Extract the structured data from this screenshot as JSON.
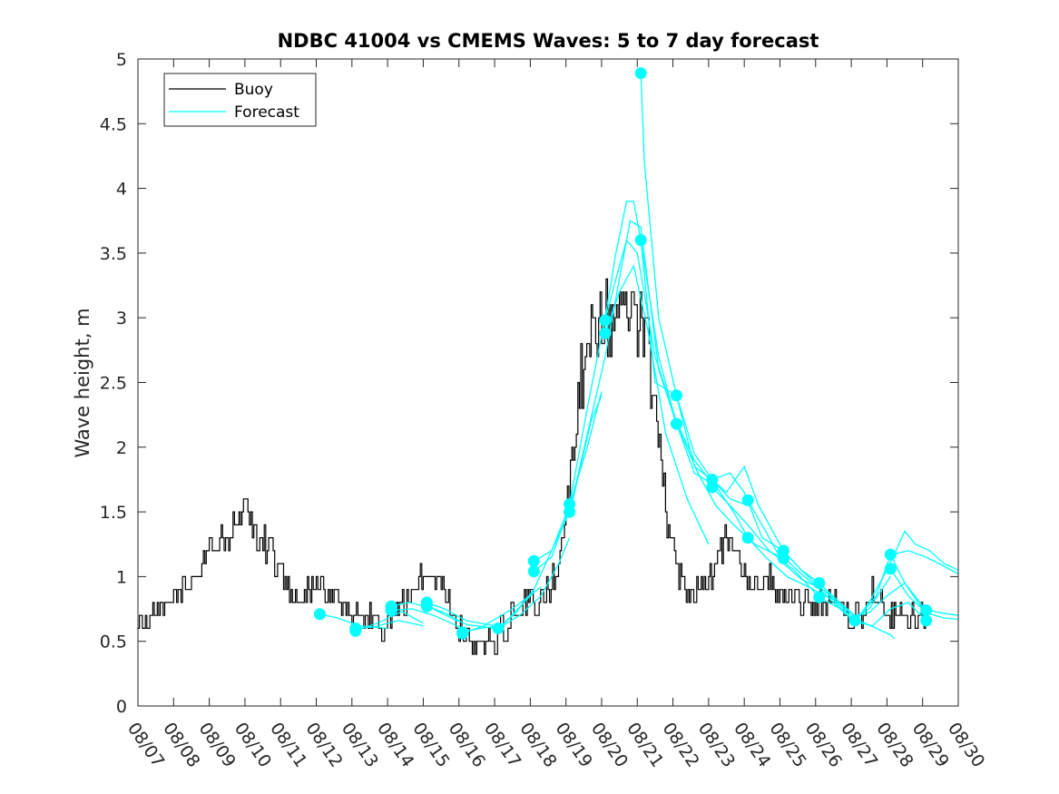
{
  "chart_data": {
    "type": "line",
    "title": "NDBC 41004 vs CMEMS Waves: 5 to 7 day forecast",
    "xlabel": "",
    "ylabel": "Wave height, m",
    "xlim_day": [
      7,
      30
    ],
    "ylim": [
      0,
      5
    ],
    "yticks": [
      0,
      0.5,
      1,
      1.5,
      2,
      2.5,
      3,
      3.5,
      4,
      4.5,
      5
    ],
    "ytick_labels": [
      "0",
      "0.5",
      "1",
      "1.5",
      "2",
      "2.5",
      "3",
      "3.5",
      "4",
      "4.5",
      "5"
    ],
    "xticks_day": [
      7,
      8,
      9,
      10,
      11,
      12,
      13,
      14,
      15,
      16,
      17,
      18,
      19,
      20,
      21,
      22,
      23,
      24,
      25,
      26,
      27,
      28,
      29,
      30
    ],
    "xtick_labels": [
      "08/07",
      "08/08",
      "08/09",
      "08/10",
      "08/11",
      "08/12",
      "08/13",
      "08/14",
      "08/15",
      "08/16",
      "08/17",
      "08/18",
      "08/19",
      "08/20",
      "08/21",
      "08/22",
      "08/23",
      "08/24",
      "08/25",
      "08/26",
      "08/27",
      "08/28",
      "08/29",
      "08/30"
    ],
    "legend": {
      "location": "top-left",
      "entries": [
        "Buoy",
        "Forecast"
      ]
    },
    "colors": {
      "buoy": "#000000",
      "forecast": "#00ffff",
      "axis": "#262626"
    },
    "buoy_noise": 0.1,
    "buoy_keypoints": [
      [
        7.0,
        0.6
      ],
      [
        7.3,
        0.65
      ],
      [
        7.6,
        0.8
      ],
      [
        8.0,
        0.85
      ],
      [
        8.4,
        0.95
      ],
      [
        8.8,
        1.1
      ],
      [
        9.1,
        1.35
      ],
      [
        9.4,
        1.2
      ],
      [
        9.8,
        1.5
      ],
      [
        10.1,
        1.45
      ],
      [
        10.5,
        1.3
      ],
      [
        10.9,
        1.1
      ],
      [
        11.2,
        0.9
      ],
      [
        11.6,
        0.85
      ],
      [
        12.0,
        0.95
      ],
      [
        12.4,
        0.85
      ],
      [
        12.8,
        0.75
      ],
      [
        13.2,
        0.65
      ],
      [
        13.5,
        0.7
      ],
      [
        13.9,
        0.6
      ],
      [
        14.2,
        0.7
      ],
      [
        14.6,
        0.85
      ],
      [
        15.0,
        1.0
      ],
      [
        15.4,
        0.95
      ],
      [
        15.8,
        0.75
      ],
      [
        16.1,
        0.55
      ],
      [
        16.5,
        0.45
      ],
      [
        17.0,
        0.5
      ],
      [
        17.4,
        0.65
      ],
      [
        17.8,
        0.8
      ],
      [
        18.1,
        0.78
      ],
      [
        18.4,
        0.85
      ],
      [
        18.7,
        1.0
      ],
      [
        19.0,
        1.5
      ],
      [
        19.3,
        2.3
      ],
      [
        19.6,
        2.9
      ],
      [
        20.0,
        3.0
      ],
      [
        20.3,
        2.95
      ],
      [
        20.6,
        3.05
      ],
      [
        21.0,
        3.0
      ],
      [
        21.2,
        2.95
      ],
      [
        21.5,
        2.3
      ],
      [
        21.8,
        1.5
      ],
      [
        22.1,
        1.0
      ],
      [
        22.5,
        0.85
      ],
      [
        22.9,
        0.95
      ],
      [
        23.3,
        1.15
      ],
      [
        23.6,
        1.3
      ],
      [
        23.9,
        1.05
      ],
      [
        24.2,
        0.9
      ],
      [
        24.6,
        1.0
      ],
      [
        25.0,
        0.85
      ],
      [
        25.4,
        0.85
      ],
      [
        25.8,
        0.78
      ],
      [
        26.2,
        0.78
      ],
      [
        26.6,
        0.78
      ],
      [
        26.9,
        0.7
      ],
      [
        27.3,
        0.65
      ],
      [
        27.6,
        0.9
      ],
      [
        27.9,
        0.8
      ],
      [
        28.1,
        0.68
      ],
      [
        28.6,
        0.7
      ],
      [
        29.1,
        0.68
      ]
    ],
    "series": [
      {
        "name": "Buoy",
        "color": "#000000"
      },
      {
        "name": "Forecast",
        "color": "#00ffff",
        "lines": [
          [
            [
              12.1,
              0.71
            ],
            [
              12.6,
              0.68
            ],
            [
              13.2,
              0.62
            ],
            [
              14.0,
              0.6
            ]
          ],
          [
            [
              13.1,
              0.6
            ],
            [
              13.6,
              0.61
            ],
            [
              14.3,
              0.66
            ],
            [
              15.0,
              0.62
            ]
          ],
          [
            [
              13.1,
              0.58
            ],
            [
              13.8,
              0.65
            ],
            [
              14.4,
              0.73
            ],
            [
              15.0,
              0.64
            ]
          ],
          [
            [
              14.1,
              0.77
            ],
            [
              14.6,
              0.8
            ],
            [
              15.2,
              0.76
            ],
            [
              16.0,
              0.65
            ]
          ],
          [
            [
              14.1,
              0.74
            ],
            [
              14.7,
              0.75
            ],
            [
              15.3,
              0.7
            ],
            [
              16.1,
              0.6
            ]
          ],
          [
            [
              15.1,
              0.8
            ],
            [
              15.6,
              0.75
            ],
            [
              16.2,
              0.66
            ],
            [
              17.0,
              0.62
            ]
          ],
          [
            [
              15.1,
              0.77
            ],
            [
              15.6,
              0.72
            ],
            [
              16.2,
              0.63
            ],
            [
              17.0,
              0.6
            ]
          ],
          [
            [
              16.1,
              0.57
            ],
            [
              16.6,
              0.6
            ],
            [
              17.2,
              0.62
            ],
            [
              18.1,
              0.88
            ]
          ],
          [
            [
              16.1,
              0.56
            ],
            [
              16.7,
              0.62
            ],
            [
              17.5,
              0.75
            ],
            [
              18.3,
              0.92
            ]
          ],
          [
            [
              17.1,
              0.6
            ],
            [
              17.6,
              0.72
            ],
            [
              18.1,
              0.9
            ],
            [
              18.6,
              1.2
            ],
            [
              19.1,
              1.5
            ]
          ],
          [
            [
              17.1,
              0.6
            ],
            [
              17.7,
              0.7
            ],
            [
              18.3,
              0.85
            ],
            [
              18.8,
              1.1
            ],
            [
              19.1,
              1.3
            ]
          ],
          [
            [
              18.1,
              1.12
            ],
            [
              18.6,
              1.2
            ],
            [
              19.1,
              1.55
            ],
            [
              19.6,
              2.0
            ],
            [
              20.0,
              2.43
            ]
          ],
          [
            [
              18.1,
              1.04
            ],
            [
              18.6,
              1.15
            ],
            [
              19.2,
              1.6
            ],
            [
              19.7,
              2.2
            ],
            [
              20.0,
              2.4
            ]
          ],
          [
            [
              19.1,
              1.56
            ],
            [
              19.6,
              2.3
            ],
            [
              20.1,
              3.0
            ],
            [
              20.4,
              3.5
            ],
            [
              20.7,
              3.9
            ],
            [
              20.9,
              3.9
            ],
            [
              21.1,
              3.6
            ],
            [
              21.5,
              2.5
            ],
            [
              22.1,
              2.4
            ]
          ],
          [
            [
              19.1,
              1.5
            ],
            [
              19.6,
              2.1
            ],
            [
              20.1,
              2.7
            ],
            [
              20.5,
              3.3
            ],
            [
              20.8,
              3.75
            ],
            [
              21.1,
              3.7
            ],
            [
              21.6,
              2.6
            ],
            [
              22.1,
              2.18
            ]
          ],
          [
            [
              20.1,
              2.98
            ],
            [
              20.4,
              3.3
            ],
            [
              20.7,
              3.6
            ],
            [
              21.0,
              3.5
            ],
            [
              21.5,
              2.7
            ],
            [
              22.1,
              2.2
            ],
            [
              22.6,
              1.9
            ],
            [
              23.1,
              1.72
            ]
          ],
          [
            [
              20.1,
              2.88
            ],
            [
              20.5,
              3.2
            ],
            [
              20.9,
              3.4
            ],
            [
              21.3,
              2.9
            ],
            [
              21.8,
              2.1
            ],
            [
              22.4,
              1.6
            ],
            [
              23.0,
              1.25
            ]
          ],
          [
            [
              21.1,
              4.89
            ],
            [
              21.2,
              4.2
            ],
            [
              21.6,
              3.0
            ],
            [
              22.1,
              2.4
            ],
            [
              22.6,
              1.85
            ],
            [
              23.1,
              1.75
            ],
            [
              23.6,
              1.6
            ],
            [
              24.1,
              1.55
            ]
          ],
          [
            [
              21.1,
              3.6
            ],
            [
              21.6,
              2.7
            ],
            [
              22.1,
              2.18
            ],
            [
              22.6,
              1.8
            ],
            [
              23.2,
              1.7
            ],
            [
              23.7,
              1.5
            ],
            [
              24.1,
              1.3
            ]
          ],
          [
            [
              22.1,
              2.4
            ],
            [
              22.6,
              1.95
            ],
            [
              23.1,
              1.75
            ],
            [
              23.6,
              1.8
            ],
            [
              24.0,
              1.65
            ],
            [
              24.5,
              1.3
            ],
            [
              25.1,
              1.2
            ]
          ],
          [
            [
              22.1,
              2.18
            ],
            [
              22.7,
              1.8
            ],
            [
              23.2,
              1.55
            ],
            [
              23.7,
              1.4
            ],
            [
              24.3,
              1.25
            ],
            [
              25.1,
              1.14
            ]
          ],
          [
            [
              23.1,
              1.75
            ],
            [
              23.5,
              1.65
            ],
            [
              24.0,
              1.85
            ],
            [
              24.4,
              1.55
            ],
            [
              25.1,
              1.2
            ],
            [
              25.6,
              1.05
            ],
            [
              26.1,
              0.95
            ]
          ],
          [
            [
              23.1,
              1.69
            ],
            [
              23.6,
              1.55
            ],
            [
              24.1,
              1.4
            ],
            [
              24.7,
              1.2
            ],
            [
              25.4,
              1.05
            ],
            [
              26.1,
              0.84
            ]
          ],
          [
            [
              24.1,
              1.59
            ],
            [
              24.6,
              1.35
            ],
            [
              25.1,
              1.1
            ],
            [
              25.6,
              0.98
            ],
            [
              26.2,
              0.9
            ],
            [
              26.7,
              0.78
            ],
            [
              27.1,
              0.65
            ]
          ],
          [
            [
              24.1,
              1.3
            ],
            [
              24.6,
              1.15
            ],
            [
              25.2,
              1.0
            ],
            [
              25.8,
              0.92
            ],
            [
              26.5,
              0.82
            ],
            [
              27.1,
              0.64
            ]
          ],
          [
            [
              25.1,
              1.2
            ],
            [
              25.6,
              1.05
            ],
            [
              26.1,
              0.92
            ],
            [
              26.6,
              0.82
            ],
            [
              27.1,
              0.68
            ],
            [
              27.5,
              0.75
            ],
            [
              28.1,
              1.0
            ]
          ],
          [
            [
              25.1,
              1.15
            ],
            [
              25.6,
              1.02
            ],
            [
              26.2,
              0.88
            ],
            [
              26.8,
              0.72
            ],
            [
              27.3,
              0.65
            ],
            [
              27.7,
              0.6
            ],
            [
              28.1,
              0.55
            ],
            [
              28.2,
              0.52
            ]
          ],
          [
            [
              26.1,
              0.95
            ],
            [
              26.6,
              0.82
            ],
            [
              27.1,
              0.7
            ],
            [
              27.5,
              0.72
            ],
            [
              28.0,
              0.85
            ],
            [
              28.5,
              0.95
            ],
            [
              29.1,
              0.74
            ]
          ],
          [
            [
              26.1,
              0.84
            ],
            [
              26.7,
              0.75
            ],
            [
              27.1,
              0.65
            ],
            [
              27.6,
              0.62
            ],
            [
              28.1,
              0.75
            ],
            [
              28.6,
              0.8
            ],
            [
              29.1,
              0.66
            ]
          ],
          [
            [
              27.1,
              0.65
            ],
            [
              27.5,
              0.8
            ],
            [
              28.0,
              1.05
            ],
            [
              28.5,
              1.35
            ],
            [
              28.8,
              1.25
            ],
            [
              29.2,
              1.2
            ],
            [
              29.6,
              1.1
            ],
            [
              30.0,
              1.05
            ]
          ],
          [
            [
              27.1,
              0.65
            ],
            [
              27.7,
              0.85
            ],
            [
              28.1,
              1.17
            ],
            [
              28.6,
              1.2
            ],
            [
              29.1,
              1.15
            ],
            [
              29.6,
              1.08
            ],
            [
              30.0,
              1.02
            ]
          ],
          [
            [
              28.1,
              1.17
            ],
            [
              28.5,
              0.95
            ],
            [
              29.0,
              0.75
            ],
            [
              29.5,
              0.72
            ],
            [
              30.0,
              0.7
            ]
          ],
          [
            [
              28.1,
              1.06
            ],
            [
              28.6,
              0.85
            ],
            [
              29.1,
              0.72
            ],
            [
              29.6,
              0.68
            ],
            [
              30.0,
              0.67
            ]
          ]
        ]
      }
    ],
    "markers": [
      [
        12.1,
        0.71
      ],
      [
        13.1,
        0.6
      ],
      [
        13.1,
        0.58
      ],
      [
        14.1,
        0.77
      ],
      [
        14.1,
        0.74
      ],
      [
        15.1,
        0.8
      ],
      [
        15.1,
        0.77
      ],
      [
        16.1,
        0.57
      ],
      [
        16.1,
        0.56
      ],
      [
        17.1,
        0.6
      ],
      [
        18.1,
        1.12
      ],
      [
        18.1,
        1.04
      ],
      [
        19.1,
        1.56
      ],
      [
        19.1,
        1.5
      ],
      [
        20.1,
        2.98
      ],
      [
        20.1,
        2.88
      ],
      [
        21.1,
        4.89
      ],
      [
        21.1,
        3.6
      ],
      [
        22.1,
        2.4
      ],
      [
        22.1,
        2.18
      ],
      [
        23.1,
        1.75
      ],
      [
        23.1,
        1.69
      ],
      [
        24.1,
        1.59
      ],
      [
        24.1,
        1.3
      ],
      [
        25.1,
        1.2
      ],
      [
        25.1,
        1.14
      ],
      [
        26.1,
        0.95
      ],
      [
        26.1,
        0.84
      ],
      [
        27.1,
        0.66
      ],
      [
        28.1,
        1.17
      ],
      [
        28.1,
        1.06
      ],
      [
        29.1,
        0.74
      ],
      [
        29.1,
        0.66
      ]
    ]
  }
}
